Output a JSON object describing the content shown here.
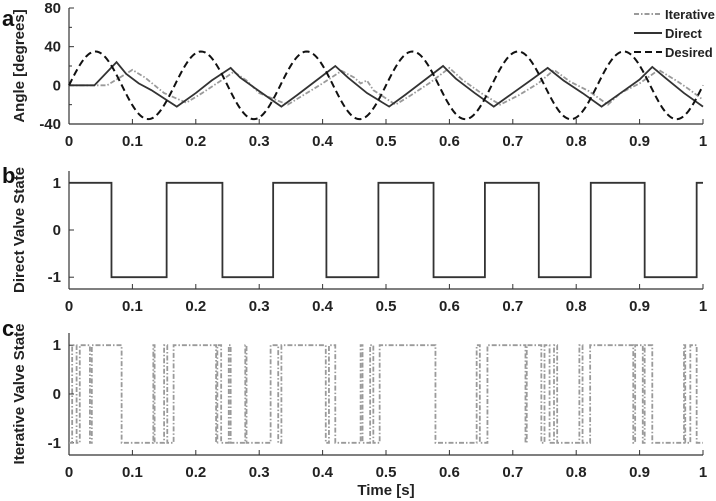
{
  "chart_data": [
    {
      "type": "line",
      "panel_label": "a",
      "ylabel": "Angle [degrees]",
      "xlim": [
        0,
        1
      ],
      "ylim": [
        -40,
        80
      ],
      "xticks": [
        "0",
        "0.1",
        "0.2",
        "0.3",
        "0.4",
        "0.5",
        "0.6",
        "0.7",
        "0.8",
        "0.9",
        "1"
      ],
      "yticks": [
        "-40",
        "0",
        "40",
        "80"
      ],
      "yticks_values": [
        -40,
        0,
        40,
        80
      ],
      "legend_position": "top-right",
      "series": [
        {
          "name": "Iterative",
          "style": "dash-dot",
          "color": "#9a9a9a",
          "points": [
            [
              0,
              0
            ],
            [
              0.06,
              0
            ],
            [
              0.1,
              16
            ],
            [
              0.12,
              8
            ],
            [
              0.15,
              -8
            ],
            [
              0.185,
              -18
            ],
            [
              0.21,
              -8
            ],
            [
              0.24,
              5
            ],
            [
              0.26,
              14
            ],
            [
              0.28,
              5
            ],
            [
              0.3,
              -8
            ],
            [
              0.345,
              -20
            ],
            [
              0.37,
              -10
            ],
            [
              0.4,
              2
            ],
            [
              0.43,
              15
            ],
            [
              0.45,
              8
            ],
            [
              0.46,
              2
            ],
            [
              0.47,
              5
            ],
            [
              0.48,
              -5
            ],
            [
              0.515,
              -20
            ],
            [
              0.54,
              -10
            ],
            [
              0.57,
              3
            ],
            [
              0.6,
              18
            ],
            [
              0.62,
              6
            ],
            [
              0.65,
              -8
            ],
            [
              0.68,
              -20
            ],
            [
              0.71,
              -10
            ],
            [
              0.74,
              2
            ],
            [
              0.765,
              16
            ],
            [
              0.79,
              4
            ],
            [
              0.82,
              -6
            ],
            [
              0.85,
              -20
            ],
            [
              0.87,
              -8
            ],
            [
              0.9,
              2
            ],
            [
              0.93,
              16
            ],
            [
              0.96,
              4
            ],
            [
              0.98,
              -5
            ],
            [
              1,
              -15
            ]
          ]
        },
        {
          "name": "Direct",
          "style": "solid",
          "color": "#333333",
          "points": [
            [
              0,
              0
            ],
            [
              0.04,
              0
            ],
            [
              0.075,
              24
            ],
            [
              0.09,
              12
            ],
            [
              0.11,
              2
            ],
            [
              0.13,
              -5
            ],
            [
              0.17,
              -22
            ],
            [
              0.2,
              -8
            ],
            [
              0.225,
              5
            ],
            [
              0.255,
              18
            ],
            [
              0.27,
              8
            ],
            [
              0.3,
              -6
            ],
            [
              0.335,
              -22
            ],
            [
              0.36,
              -10
            ],
            [
              0.39,
              5
            ],
            [
              0.42,
              20
            ],
            [
              0.44,
              8
            ],
            [
              0.47,
              -8
            ],
            [
              0.505,
              -22
            ],
            [
              0.53,
              -10
            ],
            [
              0.56,
              5
            ],
            [
              0.59,
              20
            ],
            [
              0.61,
              7
            ],
            [
              0.64,
              -8
            ],
            [
              0.67,
              -22
            ],
            [
              0.7,
              -8
            ],
            [
              0.73,
              6
            ],
            [
              0.755,
              18
            ],
            [
              0.78,
              5
            ],
            [
              0.81,
              -8
            ],
            [
              0.84,
              -22
            ],
            [
              0.87,
              -8
            ],
            [
              0.9,
              6
            ],
            [
              0.92,
              19
            ],
            [
              0.94,
              8
            ],
            [
              0.97,
              -8
            ],
            [
              1,
              -22
            ]
          ]
        },
        {
          "name": "Desired",
          "style": "dashed",
          "color": "#111111",
          "function": "sine",
          "amplitude": 35,
          "frequency_hz": 6,
          "offset": 0
        }
      ]
    },
    {
      "type": "line",
      "panel_label": "b",
      "ylabel": "Direct Valve State",
      "xlim": [
        0,
        1
      ],
      "ylim": [
        -1.25,
        1.25
      ],
      "xticks": [
        "0",
        "0.1",
        "0.2",
        "0.3",
        "0.4",
        "0.5",
        "0.6",
        "0.7",
        "0.8",
        "0.9",
        "1"
      ],
      "yticks": [
        "-1",
        "0",
        "1"
      ],
      "yticks_values": [
        -1,
        0,
        1
      ],
      "series": [
        {
          "name": "Direct",
          "style": "solid",
          "color": "#333333",
          "steps": [
            [
              0,
              1
            ],
            [
              0.067,
              -1
            ],
            [
              0.154,
              1
            ],
            [
              0.242,
              -1
            ],
            [
              0.322,
              1
            ],
            [
              0.406,
              -1
            ],
            [
              0.488,
              1
            ],
            [
              0.575,
              -1
            ],
            [
              0.656,
              1
            ],
            [
              0.741,
              -1
            ],
            [
              0.823,
              1
            ],
            [
              0.908,
              -1
            ],
            [
              0.99,
              1
            ]
          ]
        }
      ]
    },
    {
      "type": "line",
      "panel_label": "c",
      "ylabel": "Iterative Valve State",
      "xlabel": "Time [s]",
      "xlim": [
        0,
        1
      ],
      "ylim": [
        -1.25,
        1.25
      ],
      "xticks": [
        "0",
        "0.1",
        "0.2",
        "0.3",
        "0.4",
        "0.5",
        "0.6",
        "0.7",
        "0.8",
        "0.9",
        "1"
      ],
      "yticks": [
        "-1",
        "0",
        "1"
      ],
      "yticks_values": [
        -1,
        0,
        1
      ],
      "series": [
        {
          "name": "Iterative",
          "style": "dash-dot",
          "color": "#9a9a9a",
          "steps": [
            [
              0,
              -1
            ],
            [
              0.005,
              1
            ],
            [
              0.012,
              -1
            ],
            [
              0.017,
              1
            ],
            [
              0.033,
              -1
            ],
            [
              0.036,
              1
            ],
            [
              0.083,
              -1
            ],
            [
              0.133,
              1
            ],
            [
              0.135,
              -1
            ],
            [
              0.15,
              1
            ],
            [
              0.155,
              -1
            ],
            [
              0.165,
              1
            ],
            [
              0.232,
              -1
            ],
            [
              0.234,
              1
            ],
            [
              0.24,
              -1
            ],
            [
              0.252,
              1
            ],
            [
              0.255,
              -1
            ],
            [
              0.278,
              1
            ],
            [
              0.28,
              -1
            ],
            [
              0.318,
              1
            ],
            [
              0.33,
              -1
            ],
            [
              0.335,
              1
            ],
            [
              0.405,
              -1
            ],
            [
              0.41,
              1
            ],
            [
              0.42,
              -1
            ],
            [
              0.46,
              1
            ],
            [
              0.463,
              -1
            ],
            [
              0.475,
              1
            ],
            [
              0.48,
              -1
            ],
            [
              0.49,
              1
            ],
            [
              0.578,
              -1
            ],
            [
              0.643,
              1
            ],
            [
              0.648,
              -1
            ],
            [
              0.66,
              1
            ],
            [
              0.72,
              -1
            ],
            [
              0.722,
              1
            ],
            [
              0.745,
              -1
            ],
            [
              0.75,
              1
            ],
            [
              0.758,
              -1
            ],
            [
              0.765,
              1
            ],
            [
              0.77,
              -1
            ],
            [
              0.805,
              1
            ],
            [
              0.81,
              -1
            ],
            [
              0.822,
              1
            ],
            [
              0.89,
              -1
            ],
            [
              0.893,
              1
            ],
            [
              0.905,
              -1
            ],
            [
              0.908,
              1
            ],
            [
              0.92,
              -1
            ],
            [
              0.97,
              1
            ],
            [
              0.972,
              -1
            ],
            [
              0.98,
              1
            ],
            [
              0.99,
              -1
            ],
            [
              1,
              -1
            ]
          ]
        }
      ]
    }
  ]
}
